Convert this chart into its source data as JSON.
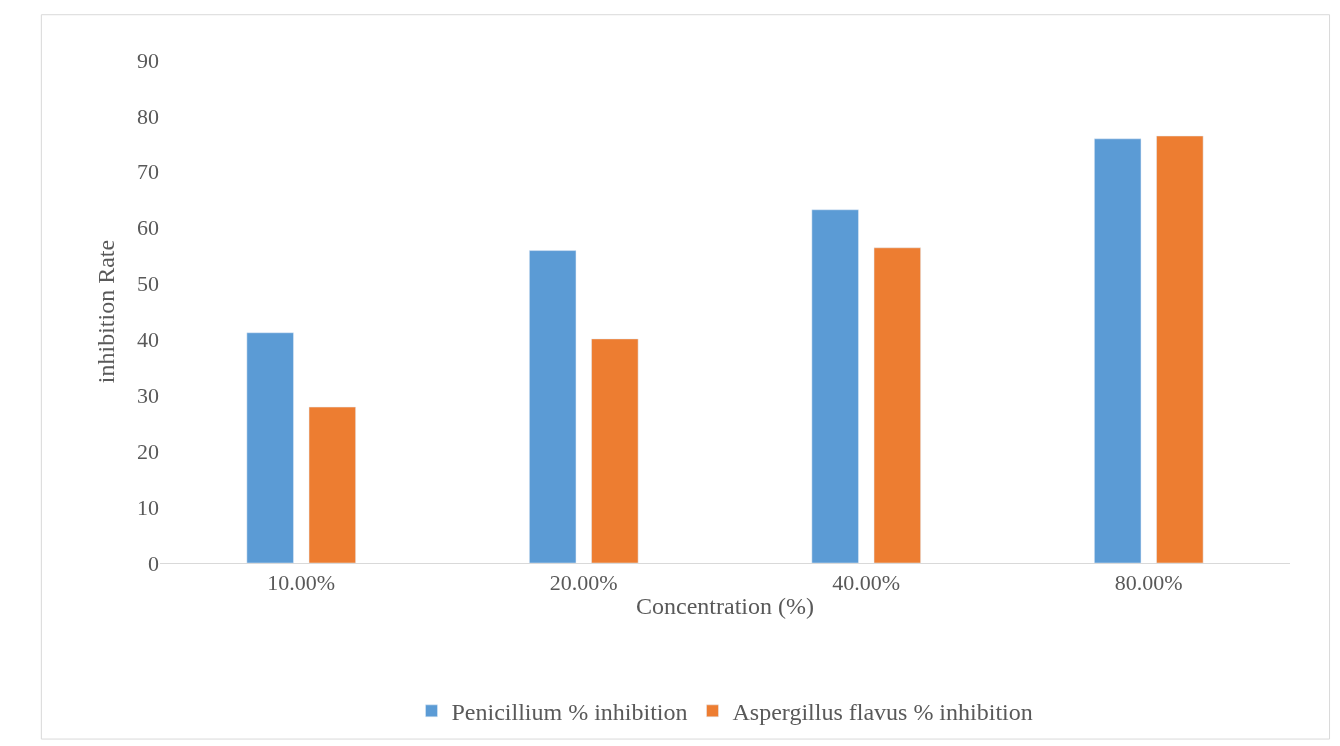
{
  "chart_data": {
    "type": "bar",
    "xlabel": "Concentration (%)",
    "ylabel": "inhibition Rate",
    "categories": [
      "10.00%",
      "20.00%",
      "40.00%",
      "80.00%"
    ],
    "series": [
      {
        "name": "Penicillium % inhibition",
        "color": "#5b9bd5",
        "values": [
          41.2,
          55.9,
          63.2,
          75.9
        ]
      },
      {
        "name": "Aspergillus flavus % inhibition",
        "color": "#ed7d31",
        "values": [
          27.9,
          40.1,
          56.4,
          76.4
        ]
      }
    ],
    "ylim": [
      0,
      90
    ],
    "yticks": [
      0,
      10,
      20,
      30,
      40,
      50,
      60,
      70,
      80,
      90
    ],
    "grid": false,
    "legend": "bottom"
  }
}
